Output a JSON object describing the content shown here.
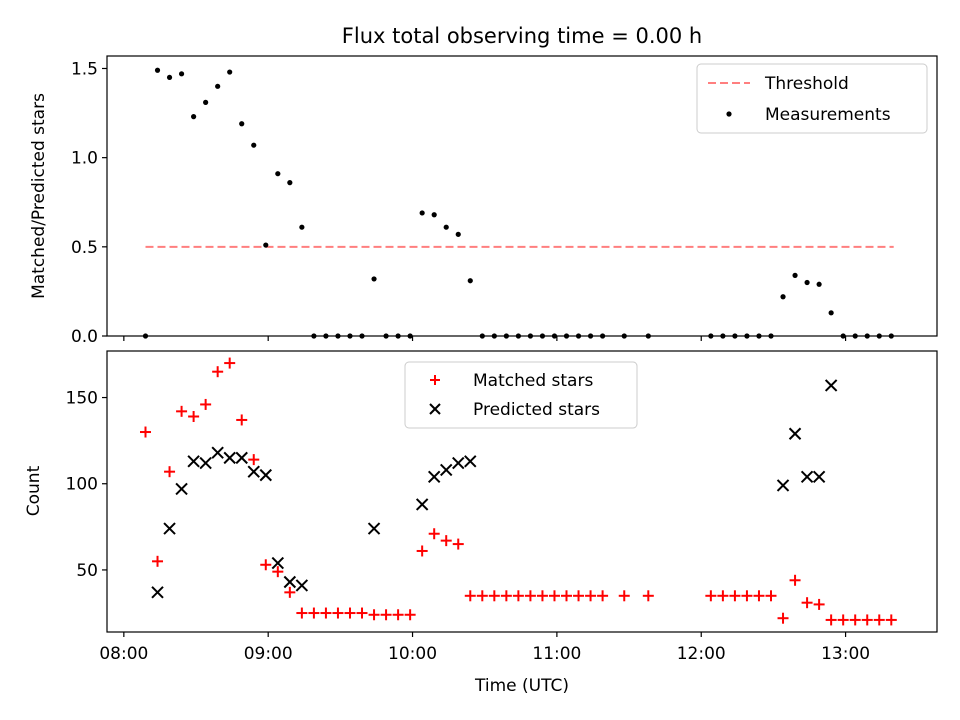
{
  "chart_data": [
    {
      "type": "scatter",
      "title": "Flux total observing time = 0.00 h",
      "xlabel": "",
      "ylabel": "Matched/Predicted stars",
      "xlim": [
        "07:53",
        "13:38"
      ],
      "ylim": [
        0,
        1.57
      ],
      "yticks": [
        0.0,
        0.5,
        1.0,
        1.5
      ],
      "ytick_labels": [
        "0.0",
        "0.5",
        "1.0",
        "1.5"
      ],
      "xticks": [
        "08:00",
        "09:00",
        "10:00",
        "11:00",
        "12:00",
        "13:00"
      ],
      "legend_position": "upper right",
      "threshold": {
        "name": "Threshold",
        "color": "#ff7f7f",
        "style": "dashed",
        "y": 0.5,
        "x_start": "08:09",
        "x_end": "13:20"
      },
      "series": [
        {
          "name": "Measurements",
          "color": "#000000",
          "marker": "dot",
          "x": [
            "08:09",
            "08:14",
            "08:19",
            "08:24",
            "08:29",
            "08:34",
            "08:39",
            "08:44",
            "08:49",
            "08:54",
            "08:59",
            "09:04",
            "09:09",
            "09:14",
            "09:19",
            "09:24",
            "09:29",
            "09:34",
            "09:39",
            "09:44",
            "09:49",
            "09:54",
            "09:59",
            "10:04",
            "10:09",
            "10:14",
            "10:19",
            "10:24",
            "10:29",
            "10:34",
            "10:39",
            "10:44",
            "10:49",
            "10:54",
            "10:59",
            "11:04",
            "11:09",
            "11:14",
            "11:19",
            "11:28",
            "11:38",
            "12:04",
            "12:09",
            "12:14",
            "12:19",
            "12:24",
            "12:29",
            "12:34",
            "12:39",
            "12:44",
            "12:49",
            "12:54",
            "12:59",
            "13:04",
            "13:09",
            "13:14",
            "13:19"
          ],
          "y": [
            0.0,
            1.49,
            1.45,
            1.47,
            1.23,
            1.31,
            1.4,
            1.48,
            1.19,
            1.07,
            0.51,
            0.91,
            0.86,
            0.61,
            0.0,
            0.0,
            0.0,
            0.0,
            0.0,
            0.32,
            0.0,
            0.0,
            0.0,
            0.69,
            0.68,
            0.61,
            0.57,
            0.31,
            0.0,
            0.0,
            0.0,
            0.0,
            0.0,
            0.0,
            0.0,
            0.0,
            0.0,
            0.0,
            0.0,
            0.0,
            0.0,
            0.0,
            0.0,
            0.0,
            0.0,
            0.0,
            0.0,
            0.22,
            0.34,
            0.3,
            0.29,
            0.13,
            0.0,
            0.0,
            0.0,
            0.0,
            0.0
          ]
        }
      ]
    },
    {
      "type": "scatter",
      "title": "",
      "xlabel": "Time (UTC)",
      "ylabel": "Count",
      "xlim": [
        "07:53",
        "13:38"
      ],
      "ylim": [
        14,
        177
      ],
      "yticks": [
        50,
        100,
        150
      ],
      "ytick_labels": [
        "50",
        "100",
        "150"
      ],
      "xticks": [
        "08:00",
        "09:00",
        "10:00",
        "11:00",
        "12:00",
        "13:00"
      ],
      "xtick_labels": [
        "08:00",
        "09:00",
        "10:00",
        "11:00",
        "12:00",
        "13:00"
      ],
      "legend_position": "upper center",
      "series": [
        {
          "name": "Matched stars",
          "color": "#ff0000",
          "marker": "plus",
          "x": [
            "08:09",
            "08:14",
            "08:19",
            "08:24",
            "08:29",
            "08:34",
            "08:39",
            "08:44",
            "08:49",
            "08:54",
            "08:59",
            "09:04",
            "09:09",
            "09:14",
            "09:19",
            "09:24",
            "09:29",
            "09:34",
            "09:39",
            "09:44",
            "09:49",
            "09:54",
            "09:59",
            "10:04",
            "10:09",
            "10:14",
            "10:19",
            "10:24",
            "10:29",
            "10:34",
            "10:39",
            "10:44",
            "10:49",
            "10:54",
            "10:59",
            "11:04",
            "11:09",
            "11:14",
            "11:19",
            "11:28",
            "11:38",
            "12:04",
            "12:09",
            "12:14",
            "12:19",
            "12:24",
            "12:29",
            "12:34",
            "12:39",
            "12:44",
            "12:49",
            "12:54",
            "12:59",
            "13:04",
            "13:09",
            "13:14",
            "13:19"
          ],
          "y": [
            130,
            55,
            107,
            142,
            139,
            146,
            165,
            170,
            137,
            114,
            53,
            49,
            37,
            25,
            25,
            25,
            25,
            25,
            25,
            24,
            24,
            24,
            24,
            61,
            71,
            67,
            65,
            35,
            35,
            35,
            35,
            35,
            35,
            35,
            35,
            35,
            35,
            35,
            35,
            35,
            35,
            35,
            35,
            35,
            35,
            35,
            35,
            22,
            44,
            31,
            30,
            21,
            21,
            21,
            21,
            21,
            21
          ]
        },
        {
          "name": "Predicted stars",
          "color": "#000000",
          "marker": "x",
          "x": [
            "08:14",
            "08:19",
            "08:24",
            "08:29",
            "08:34",
            "08:39",
            "08:44",
            "08:49",
            "08:54",
            "08:59",
            "09:04",
            "09:09",
            "09:14",
            "09:44",
            "10:04",
            "10:09",
            "10:14",
            "10:19",
            "10:24",
            "12:34",
            "12:39",
            "12:44",
            "12:49",
            "12:54"
          ],
          "y": [
            37,
            74,
            97,
            113,
            112,
            118,
            115,
            115,
            107,
            105,
            54,
            43,
            41,
            74,
            88,
            104,
            108,
            112,
            113,
            99,
            129,
            104,
            104,
            157
          ]
        }
      ]
    }
  ]
}
